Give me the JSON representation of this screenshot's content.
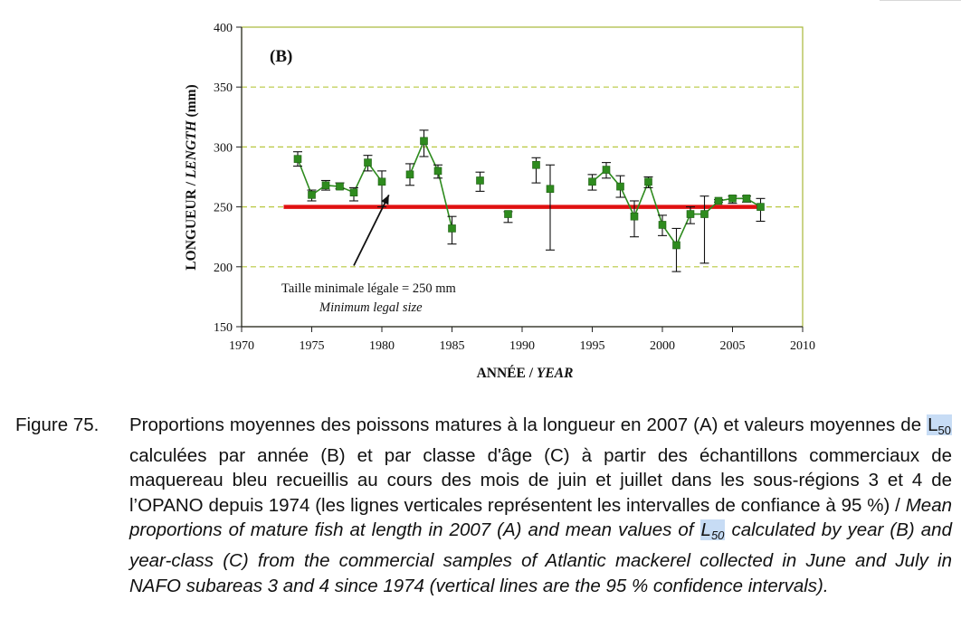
{
  "chart_data": {
    "type": "scatter",
    "panel_label": "(B)",
    "xlabel_fr": "ANNÉE",
    "xlabel_sep": " / ",
    "xlabel_en": "YEAR",
    "ylabel_fr": "LONGUEUR",
    "ylabel_sep": " / ",
    "ylabel_en": "LENGTH",
    "ylabel_unit": " (mm)",
    "xlim": [
      1970,
      2010
    ],
    "ylim": [
      150,
      400
    ],
    "x_ticks": [
      1970,
      1975,
      1980,
      1985,
      1990,
      1995,
      2000,
      2005,
      2010
    ],
    "y_ticks": [
      150,
      200,
      250,
      300,
      350,
      400
    ],
    "grid": "horizontal dashed",
    "colors": {
      "points": "#2e8b1e",
      "line": "#2e8b1e",
      "reference": "#e01010",
      "frame": "#a8b838",
      "grid": "#b8c840"
    },
    "series": [
      {
        "points": [
          {
            "x": 1974,
            "y": 290,
            "low": 284,
            "high": 296
          },
          {
            "x": 1975,
            "y": 260,
            "low": 255,
            "high": 264
          },
          {
            "x": 1976,
            "y": 268,
            "low": 264,
            "high": 272
          },
          {
            "x": 1977,
            "y": 267,
            "low": 265,
            "high": 270
          },
          {
            "x": 1978,
            "y": 262,
            "low": 255,
            "high": 266
          },
          {
            "x": 1979,
            "y": 287,
            "low": 280,
            "high": 293
          },
          {
            "x": 1980,
            "y": 271,
            "low": 250,
            "high": 280
          },
          {
            "x": 1982,
            "y": 277,
            "low": 268,
            "high": 286
          },
          {
            "x": 1983,
            "y": 305,
            "low": 292,
            "high": 314
          },
          {
            "x": 1984,
            "y": 280,
            "low": 274,
            "high": 285
          },
          {
            "x": 1985,
            "y": 232,
            "low": 219,
            "high": 242
          },
          {
            "x": 1987,
            "y": 272,
            "low": 263,
            "high": 279
          },
          {
            "x": 1989,
            "y": 244,
            "low": 237,
            "high": 246
          },
          {
            "x": 1991,
            "y": 285,
            "low": 270,
            "high": 291
          },
          {
            "x": 1992,
            "y": 265,
            "low": 214,
            "high": 285
          },
          {
            "x": 1995,
            "y": 271,
            "low": 264,
            "high": 277
          },
          {
            "x": 1996,
            "y": 281,
            "low": 274,
            "high": 287
          },
          {
            "x": 1997,
            "y": 267,
            "low": 258,
            "high": 276
          },
          {
            "x": 1998,
            "y": 242,
            "low": 225,
            "high": 255
          },
          {
            "x": 1999,
            "y": 271,
            "low": 266,
            "high": 275
          },
          {
            "x": 2000,
            "y": 235,
            "low": 226,
            "high": 243
          },
          {
            "x": 2001,
            "y": 218,
            "low": 196,
            "high": 232
          },
          {
            "x": 2002,
            "y": 244,
            "low": 236,
            "high": 250
          },
          {
            "x": 2003,
            "y": 244,
            "low": 203,
            "high": 259
          },
          {
            "x": 2004,
            "y": 255,
            "low": 254,
            "high": 256
          },
          {
            "x": 2005,
            "y": 257,
            "low": 253,
            "high": 259
          },
          {
            "x": 2006,
            "y": 257,
            "low": 254,
            "high": 259
          },
          {
            "x": 2007,
            "y": 250,
            "low": 238,
            "high": 257
          }
        ],
        "line_segments": [
          [
            1974,
            1975,
            1976,
            1977,
            1978,
            1979,
            1980
          ],
          [
            1982,
            1983,
            1984,
            1985
          ],
          [
            1995,
            1996,
            1997,
            1998,
            1999,
            2000,
            2001,
            2002,
            2003,
            2004,
            2005,
            2006,
            2007
          ]
        ]
      }
    ],
    "reference_line": {
      "y": 250,
      "x_from": 1973,
      "x_to": 2007
    },
    "annotation": {
      "text_fr": "Taille minimale légale = 250 mm",
      "text_en": "Minimum legal size",
      "arrow_to": {
        "x": 1980.5,
        "y": 260
      },
      "arrow_from": {
        "x": 1978,
        "y": 201
      }
    }
  },
  "caption": {
    "label": "Figure 75.",
    "fr_part1": "Proportions moyennes des poissons matures à la longueur en 2007 (A) et valeurs moyennes de ",
    "l_sym": "L",
    "l_sub": "50",
    "fr_part2": " calculées par année (B) et par classe d'âge (C) à partir des échantillons commerciaux de maquereau bleu recueillis au cours des mois de juin et juillet dans les sous-régions 3 et 4 de l’OPANO depuis 1974 (les lignes verticales représentent les intervalles de confiance à 95 %) / ",
    "en_part1": "Mean proportions of mature fish at length in 2007 (A) and mean values of ",
    "en_part2": " calculated by year (B) and year-class (C) from the commercial samples of Atlantic mackerel collected in June and July in NAFO subareas 3 and 4 since 1974 (vertical lines are the 95 % confidence intervals)."
  }
}
